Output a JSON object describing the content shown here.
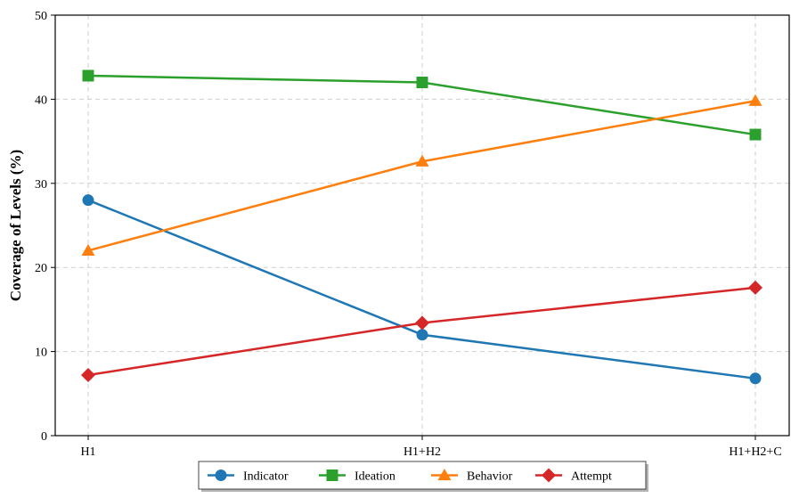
{
  "chart_data": {
    "type": "line",
    "categories": [
      "H1",
      "H1+H2",
      "H1+H2+C"
    ],
    "ylabel": "Coverage of Levels (%)",
    "xlabel": "",
    "ylim": [
      0,
      50
    ],
    "yticks": [
      0,
      10,
      20,
      30,
      40,
      50
    ],
    "grid": true,
    "legend_position": "bottom-center",
    "series": [
      {
        "name": "Indicator",
        "values": [
          28.0,
          12.0,
          6.8
        ],
        "color": "#1f77b4",
        "marker": "circle"
      },
      {
        "name": "Ideation",
        "values": [
          42.8,
          42.0,
          35.8
        ],
        "color": "#2ca02c",
        "marker": "square"
      },
      {
        "name": "Behavior",
        "values": [
          22.0,
          32.6,
          39.8
        ],
        "color": "#ff7f0e",
        "marker": "triangle"
      },
      {
        "name": "Attempt",
        "values": [
          7.2,
          13.4,
          17.6
        ],
        "color": "#d62728",
        "marker": "diamond"
      }
    ]
  }
}
